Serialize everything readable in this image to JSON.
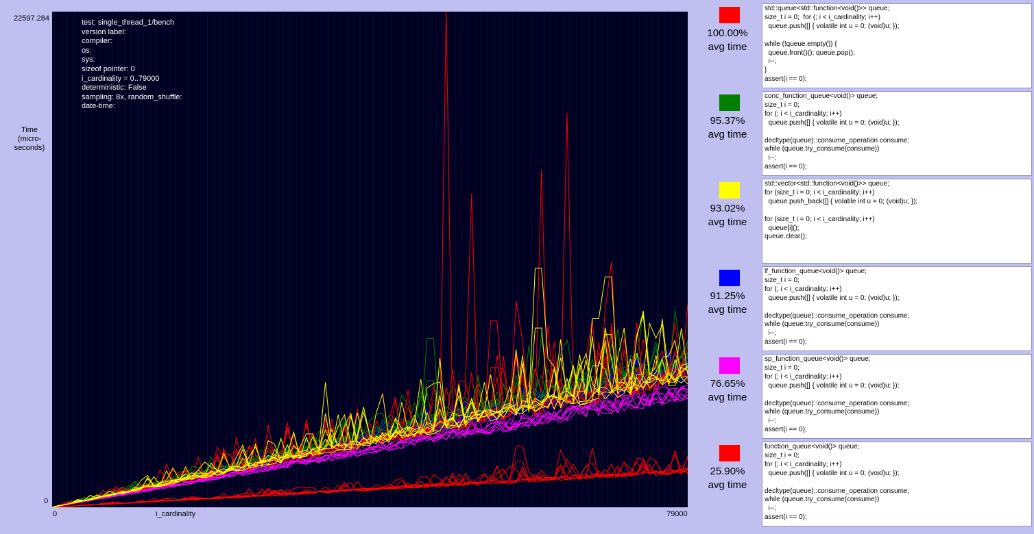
{
  "chart_data": {
    "type": "line",
    "info_lines": [
      "test: single_thread_1/bench",
      "version label:",
      "compiler:",
      "os:",
      "sys:",
      "sizeof pointer: 0",
      "i_cardinality = 0..79000",
      "deterministic: False",
      "sampling: 8x, random_shuffle:",
      "date-time:"
    ],
    "ylabel_lines": [
      "Time",
      "(micro-",
      "seconds)"
    ],
    "xlabel": "i_cardinality",
    "x_min_label": "0",
    "x_max_label": "79000",
    "y_min_label": "0",
    "y_max_label": "22597.284",
    "xlim": [
      0,
      79000
    ],
    "ylim": [
      0,
      22597.284
    ],
    "series": [
      {
        "name": "std::queue<std::function<void()>> queue",
        "color": "#ff0000",
        "base": 6050,
        "noise": 0.35,
        "spikes": [
          [
            48800,
            22597
          ],
          [
            64000,
            18000
          ],
          [
            61000,
            15400
          ],
          [
            57500,
            9400
          ],
          [
            52000,
            14300
          ],
          [
            69500,
            11200
          ],
          [
            55000,
            8500
          ]
        ]
      },
      {
        "name": "conc_function_queue<void()> queue",
        "color": "#008000",
        "base": 6600,
        "noise": 0.18,
        "spikes": [
          [
            61000,
            8000
          ],
          [
            59000,
            7400
          ],
          [
            47000,
            7700
          ]
        ]
      },
      {
        "name": "std::vector<std::function<void()>> queue",
        "color": "#ffff00",
        "base": 6100,
        "noise": 0.28,
        "spikes": [
          [
            34000,
            5700
          ],
          [
            60500,
            10900
          ],
          [
            67500,
            8600
          ],
          [
            69000,
            10500
          ],
          [
            48000,
            6800
          ]
        ]
      },
      {
        "name": "lf_function_queue<void()> queue",
        "color": "#0000ff",
        "base": 6200,
        "noise": 0.07,
        "spikes": []
      },
      {
        "name": "sp_function_queue<void()> queue",
        "color": "#ff00ff",
        "base": 5250,
        "noise": 0.06,
        "spikes": []
      },
      {
        "name": "function_queue<void()> queue",
        "color": "#ff0000",
        "base": 1650,
        "noise": 0.28,
        "spikes": [
          [
            58000,
            2800
          ],
          [
            67000,
            2700
          ],
          [
            63000,
            2600
          ]
        ]
      }
    ],
    "runs_per_series": 8,
    "points_per_run": 100
  },
  "legend": [
    {
      "pct": "100.00%",
      "avg": "avg time",
      "color": "#ff0000",
      "code": [
        "std::queue<std::function<void()>> queue;",
        "size_t i = 0;  for (; i < i_cardinality; i++)",
        "  queue.push([] { volatile int u = 0; (void)u; });",
        "",
        "while (!queue.empty()) {",
        "  queue.front()(); queue.pop();",
        "  i--;",
        "}",
        "assert(i == 0);"
      ]
    },
    {
      "pct": "95.37%",
      "avg": "avg time",
      "color": "#008000",
      "code": [
        "conc_function_queue<void()> queue;",
        "size_t i = 0;",
        "for (; i < i_cardinality; i++)",
        "  queue.push([] { volatile int u = 0; (void)u; });",
        "",
        "decltype(queue)::consume_operation consume;",
        "while (queue.try_consume(consume))",
        "  i--;",
        "assert(i == 0);"
      ]
    },
    {
      "pct": "93.02%",
      "avg": "avg time",
      "color": "#ffff00",
      "code": [
        "std::vector<std::function<void()>> queue;",
        "for (size_t i = 0; i < i_cardinality; i++)",
        "  queue.push_back([] { volatile int u = 0; (void)u; });",
        "",
        "for (size_t i = 0; i < i_cardinality; i++)",
        "  queue[i]();",
        "queue.clear();"
      ]
    },
    {
      "pct": "91.25%",
      "avg": "avg time",
      "color": "#0000ff",
      "code": [
        "lf_function_queue<void()> queue;",
        "size_t i = 0;",
        "for (; i < i_cardinality; i++)",
        "  queue.push([] { volatile int u = 0; (void)u; });",
        "",
        "decltype(queue)::consume_operation consume;",
        "while (queue.try_consume(consume))",
        "  i--;",
        "assert(i == 0);"
      ]
    },
    {
      "pct": "76.65%",
      "avg": "avg time",
      "color": "#ff00ff",
      "code": [
        "sp_function_queue<void()> queue;",
        "size_t i = 0;",
        "for (; i < i_cardinality; i++)",
        "  queue.push([] { volatile int u = 0; (void)u; });",
        "",
        "decltype(queue)::consume_operation consume;",
        "while (queue.try_consume(consume))",
        "  i--;",
        "assert(i == 0);"
      ]
    },
    {
      "pct": "25.90%",
      "avg": "avg time",
      "color": "#ff0000",
      "code": [
        "function_queue<void()> queue;",
        "size_t i = 0;",
        "for (; i < i_cardinality; i++)",
        "  queue.push([] { volatile int u = 0; (void)u; });",
        "",
        "decltype(queue)::consume_operation consume;",
        "while (queue.try_consume(consume))",
        "  i--;",
        "assert(i == 0);"
      ]
    }
  ]
}
